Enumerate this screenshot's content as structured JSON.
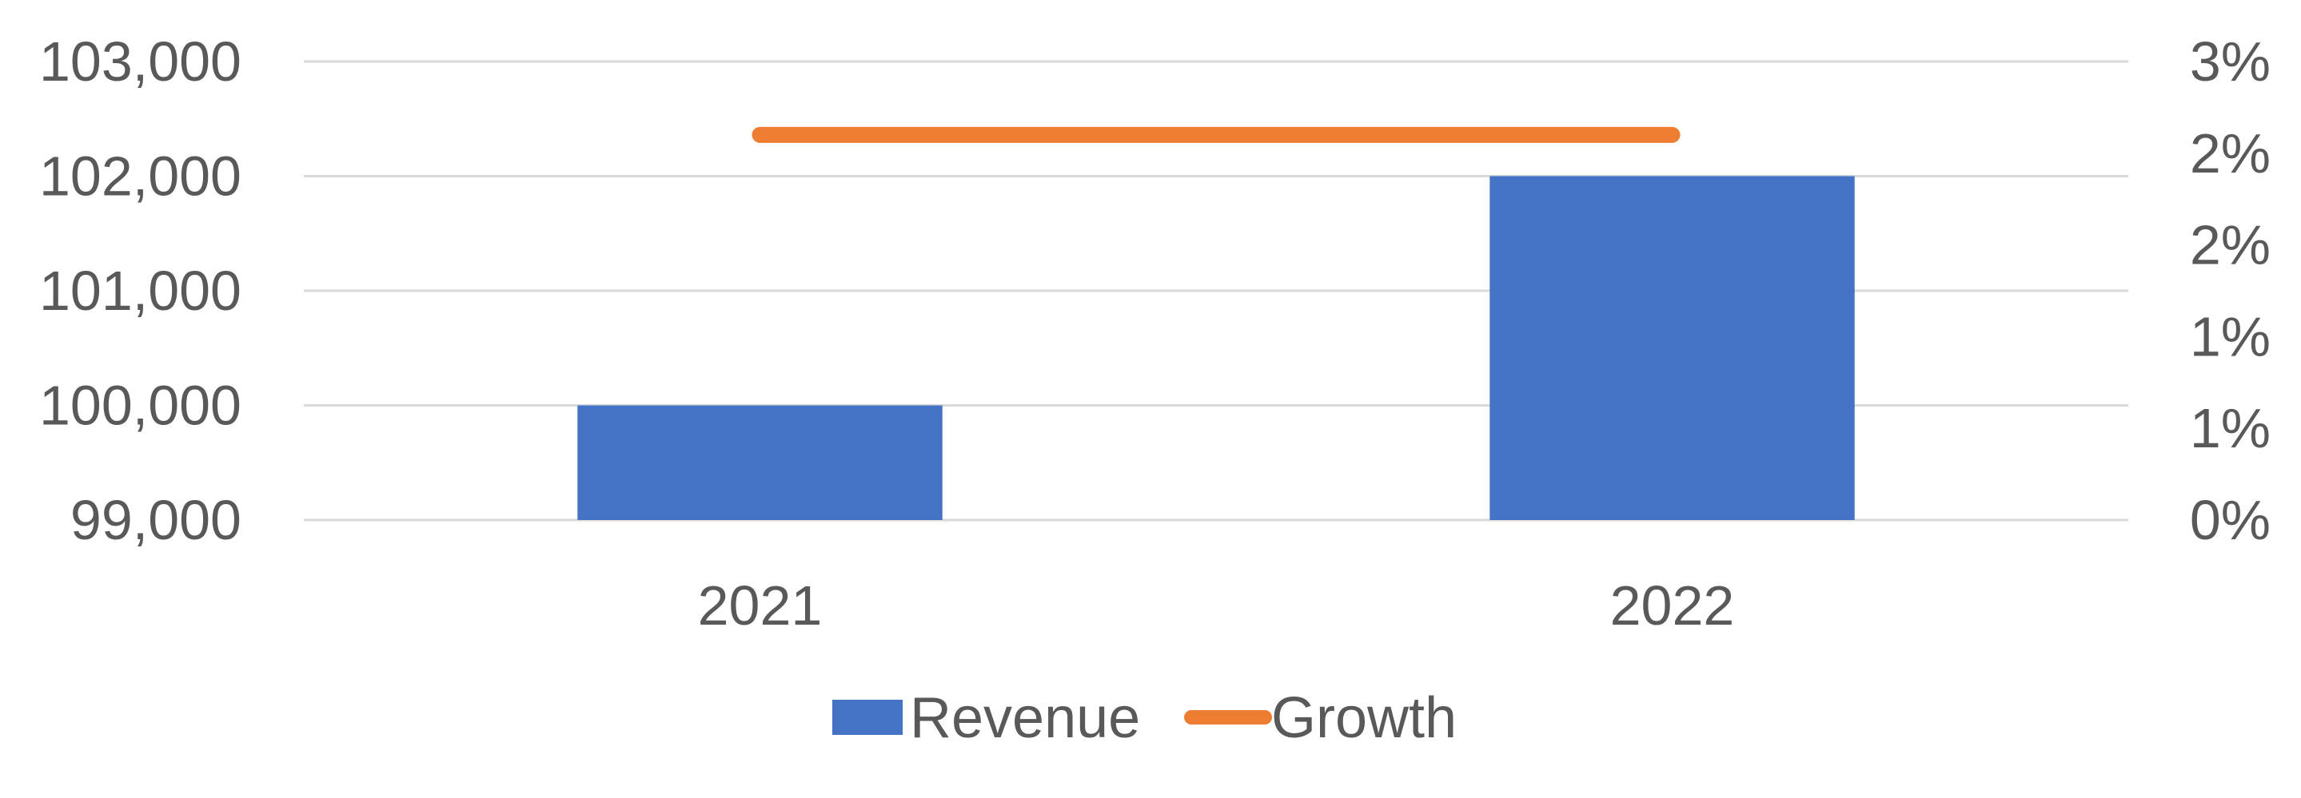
{
  "chart_data": {
    "type": "bar",
    "categories": [
      "2021",
      "2022"
    ],
    "series": [
      {
        "name": "Revenue",
        "type": "bar",
        "axis": "left",
        "values": [
          100000,
          102000
        ],
        "color": "#4472c4"
      },
      {
        "name": "Growth",
        "type": "line",
        "axis": "right",
        "values": [
          0.021,
          0.021
        ],
        "color": "#ed7d31"
      }
    ],
    "y_left": {
      "min": 99000,
      "max": 103000,
      "ticks": [
        99000,
        100000,
        101000,
        102000,
        103000
      ],
      "tick_labels": [
        "99,000",
        "100,000",
        "101,000",
        "102,000",
        "103,000"
      ]
    },
    "y_right": {
      "min": 0,
      "max": 0.025,
      "ticks": [
        0,
        0.005,
        0.01,
        0.015,
        0.02,
        0.025
      ],
      "tick_labels": [
        "0%",
        "1%",
        "1%",
        "2%",
        "2%",
        "3%"
      ]
    },
    "grid": true,
    "legend": {
      "position": "bottom",
      "entries": [
        "Revenue",
        "Growth"
      ]
    },
    "title": "",
    "xlabel": "",
    "ylabel": ""
  }
}
